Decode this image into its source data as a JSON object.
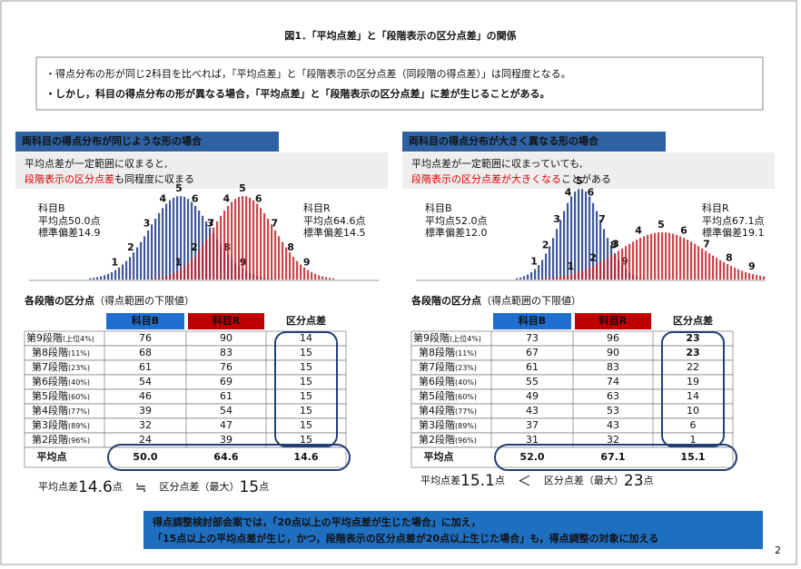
{
  "title": "図1．「平均点差」と「段階表示の区分点差」の関係",
  "bullets": [
    "・得点分布の形が同じ2科目を比べれば，「平均点差」と「段階表示の区分点差（同段階の得点差）」は同程度となる。",
    "・しかし，科目の得点分布の形が異なる場合，「平均点差」と「段階表示の区分点差」に差が生じることがある。"
  ],
  "panels": [
    {
      "heading": "両科目の得点分布が同じような形の場合",
      "note_line1": "平均点差が一定範囲に収まると,",
      "note_red": "段階表示の区分点差",
      "note_rest": "も同程度に収まる",
      "stage_labels": [
        "1",
        "2",
        "3",
        "4",
        "5",
        "6",
        "7",
        "8",
        "9"
      ],
      "subject_b": {
        "name": "科目B",
        "mean": "平均点50.0点",
        "sd": "標準偏差14.9"
      },
      "subject_r": {
        "name": "科目R",
        "mean": "平均点64.6点",
        "sd": "標準偏差14.5"
      },
      "table_title": "各段階の区分点",
      "table_subtitle": "（得点範囲の下限値）",
      "headers": [
        "科目B",
        "科目R",
        "区分点差"
      ],
      "rows": [
        [
          "第9段階",
          "(上位4%)",
          76,
          90,
          14
        ],
        [
          "第8段階",
          "(11%)",
          68,
          83,
          15
        ],
        [
          "第7段階",
          "(23%)",
          61,
          76,
          15
        ],
        [
          "第6段階",
          "(40%)",
          54,
          69,
          15
        ],
        [
          "第5段階",
          "(60%)",
          46,
          61,
          15
        ],
        [
          "第4段階",
          "(77%)",
          39,
          54,
          15
        ],
        [
          "第3段階",
          "(89%)",
          32,
          47,
          15
        ],
        [
          "第2段階",
          "(96%)",
          24,
          39,
          15
        ]
      ],
      "mean_row": [
        "平均点",
        "50.0",
        "64.6",
        "14.6"
      ],
      "summary": {
        "label": "平均点差",
        "value": "14.6",
        "unit": "点",
        "op": "≒",
        "label2": "区分点差（最大）",
        "value2": "15",
        "unit2": "点"
      }
    },
    {
      "heading": "両科目の得点分布が大きく異なる形の場合",
      "note_line1": "平均点差が一定範囲に収まっていても,",
      "note_red": "段階表示の区分点差が大きくなる",
      "note_rest": "ことがある",
      "stage_labels": [
        "1",
        "2",
        "3",
        "4",
        "5",
        "6",
        "7",
        "8",
        "9"
      ],
      "subject_b": {
        "name": "科目B",
        "mean": "平均点52.0点",
        "sd": "標準偏差12.0"
      },
      "subject_r": {
        "name": "科目R",
        "mean": "平均点67.1点",
        "sd": "標準偏差19.1"
      },
      "table_title": "各段階の区分点",
      "table_subtitle": "（得点範囲の下限値）",
      "headers": [
        "科目B",
        "科目R",
        "区分点差"
      ],
      "rows": [
        [
          "第9段階",
          "(上位4%)",
          73,
          96,
          23
        ],
        [
          "第8段階",
          "(11%)",
          67,
          90,
          23
        ],
        [
          "第7段階",
          "(23%)",
          61,
          83,
          22
        ],
        [
          "第6段階",
          "(40%)",
          55,
          74,
          19
        ],
        [
          "第5段階",
          "(60%)",
          49,
          63,
          14
        ],
        [
          "第4段階",
          "(77%)",
          43,
          53,
          10
        ],
        [
          "第3段階",
          "(89%)",
          37,
          43,
          6
        ],
        [
          "第2段階",
          "(96%)",
          31,
          32,
          1
        ]
      ],
      "mean_row": [
        "平均点",
        "52.0",
        "67.1",
        "15.1"
      ],
      "summary": {
        "label": "平均点差",
        "value": "15.1",
        "unit": "点",
        "op": "＜",
        "label2": "区分点差（最大）",
        "value2": "23",
        "unit2": "点"
      }
    }
  ],
  "footer_note": [
    "得点調整検討部会案では，「20点以上の平均点差が生じた場合」に加え，",
    "「15点以上の平均点差が生じ，かつ，段階表示の区分点差が20点以上生じた場合」も，得点調整の対象に加える"
  ],
  "page_number": "2"
}
